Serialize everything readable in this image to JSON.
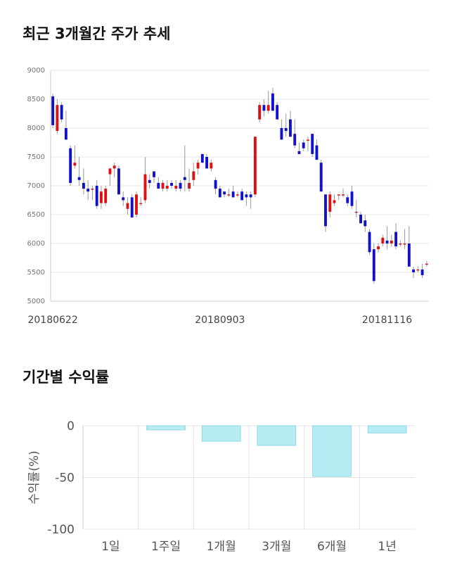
{
  "titles": {
    "candle": "최근 3개월간 주가 추세",
    "returns": "기간별 수익률"
  },
  "colors": {
    "up": "#dd1111",
    "down": "#1111cc",
    "bar_fill": "#b6ecf4",
    "bar_stroke": "#8fd6e6",
    "grid": "#e4e4e4"
  },
  "chart_data": [
    {
      "type": "candlestick",
      "title": "최근 3개월간 주가 추세",
      "ylim": [
        5000,
        9000
      ],
      "yticks": [
        "9000",
        "8500",
        "8000",
        "7500",
        "7000",
        "6500",
        "6000",
        "5500",
        "5000"
      ],
      "xtick_labels": [
        "20180622",
        "20180903",
        "20181116"
      ],
      "xtick_positions": [
        0,
        38,
        76
      ],
      "grid": true,
      "ohlc": [
        [
          8550,
          8600,
          8000,
          8050
        ],
        [
          7950,
          8500,
          7900,
          8400
        ],
        [
          8400,
          8450,
          8100,
          8150
        ],
        [
          8000,
          8300,
          7800,
          7800
        ],
        [
          7650,
          7700,
          7000,
          7050
        ],
        [
          7350,
          7700,
          7300,
          7400
        ],
        [
          7150,
          7500,
          7000,
          7100
        ],
        [
          7050,
          7300,
          6850,
          6950
        ],
        [
          6950,
          7100,
          6750,
          6900
        ],
        [
          6950,
          7000,
          6750,
          6950
        ],
        [
          7000,
          7100,
          6600,
          6650
        ],
        [
          6700,
          7000,
          6600,
          6900
        ],
        [
          6700,
          7000,
          6650,
          6950
        ],
        [
          7200,
          7300,
          7000,
          7300
        ],
        [
          7300,
          7400,
          7150,
          7350
        ],
        [
          7300,
          7350,
          6850,
          6850
        ],
        [
          6800,
          6900,
          6650,
          6750
        ],
        [
          6600,
          6800,
          6500,
          6700
        ],
        [
          6800,
          6850,
          6450,
          6450
        ],
        [
          6500,
          6900,
          6450,
          6850
        ],
        [
          6700,
          6800,
          6650,
          6700
        ],
        [
          6750,
          7500,
          6700,
          7200
        ],
        [
          7100,
          7200,
          6950,
          7050
        ],
        [
          7250,
          7250,
          7050,
          7150
        ],
        [
          7050,
          7150,
          6950,
          6950
        ],
        [
          6950,
          7100,
          6900,
          7050
        ],
        [
          6950,
          7100,
          6900,
          7000
        ],
        [
          7050,
          7100,
          6950,
          7000
        ],
        [
          6950,
          7100,
          6900,
          7000
        ],
        [
          7050,
          7100,
          6900,
          6950
        ],
        [
          7150,
          7700,
          6900,
          7100
        ],
        [
          6950,
          7300,
          6900,
          7050
        ],
        [
          7100,
          7400,
          7000,
          7250
        ],
        [
          7300,
          7450,
          7200,
          7400
        ],
        [
          7550,
          7550,
          7400,
          7400
        ],
        [
          7500,
          7550,
          7300,
          7300
        ],
        [
          7300,
          7450,
          7250,
          7400
        ],
        [
          7100,
          7150,
          6850,
          6950
        ],
        [
          6950,
          7000,
          6800,
          6800
        ],
        [
          6900,
          6900,
          6800,
          6850
        ],
        [
          6850,
          6950,
          6800,
          6850
        ],
        [
          6900,
          7000,
          6800,
          6800
        ],
        [
          6850,
          6900,
          6800,
          6850
        ],
        [
          6900,
          6950,
          6750,
          6750
        ],
        [
          6850,
          6900,
          6650,
          6800
        ],
        [
          6850,
          6900,
          6600,
          6800
        ],
        [
          6850,
          7850,
          6800,
          7850
        ],
        [
          8150,
          8450,
          8100,
          8400
        ],
        [
          8400,
          8500,
          8200,
          8300
        ],
        [
          8300,
          8650,
          8250,
          8400
        ],
        [
          8600,
          8700,
          8300,
          8300
        ],
        [
          8400,
          8450,
          8150,
          8150
        ],
        [
          8000,
          8150,
          7800,
          7800
        ],
        [
          8000,
          8250,
          7850,
          7950
        ],
        [
          8150,
          8300,
          7850,
          7850
        ],
        [
          7900,
          8150,
          7650,
          7700
        ],
        [
          7600,
          7750,
          7550,
          7550
        ],
        [
          7750,
          7800,
          7600,
          7650
        ],
        [
          7800,
          7850,
          7600,
          7800
        ],
        [
          7900,
          7900,
          7500,
          7550
        ],
        [
          7700,
          7800,
          7450,
          7450
        ],
        [
          7400,
          7450,
          6900,
          6900
        ],
        [
          6850,
          6850,
          6200,
          6300
        ],
        [
          6550,
          6900,
          6450,
          6850
        ],
        [
          6700,
          6850,
          6650,
          6750
        ],
        [
          6850,
          6850,
          6750,
          6850
        ],
        [
          6850,
          6950,
          6800,
          6850
        ],
        [
          6800,
          6850,
          6650,
          6700
        ],
        [
          6900,
          7000,
          6600,
          6650
        ],
        [
          6550,
          6750,
          6450,
          6550
        ],
        [
          6500,
          6550,
          6350,
          6350
        ],
        [
          6400,
          6500,
          6200,
          6300
        ],
        [
          6200,
          6250,
          5800,
          5850
        ],
        [
          5900,
          6000,
          5300,
          5350
        ],
        [
          5900,
          6000,
          5850,
          5950
        ],
        [
          6000,
          6150,
          5950,
          6100
        ],
        [
          6050,
          6300,
          5900,
          6000
        ],
        [
          6000,
          6150,
          5950,
          6050
        ],
        [
          6200,
          6350,
          5900,
          5950
        ],
        [
          6000,
          6050,
          5950,
          6000
        ],
        [
          6000,
          6250,
          5900,
          6000
        ],
        [
          6000,
          6300,
          5600,
          5600
        ],
        [
          5550,
          5600,
          5400,
          5500
        ],
        [
          5550,
          5600,
          5500,
          5550
        ],
        [
          5550,
          5650,
          5400,
          5450
        ],
        [
          5650,
          5700,
          5600,
          5650
        ]
      ]
    },
    {
      "type": "bar",
      "title": "기간별 수익률",
      "categories": [
        "1일",
        "1주일",
        "1개월",
        "3개월",
        "6개월",
        "1년"
      ],
      "values": [
        0,
        -4,
        -15,
        -19,
        -49,
        -7
      ],
      "ylabel": "수익률(%)",
      "ylim": [
        -100,
        0
      ],
      "yticks": [
        "0",
        "-50",
        "-100"
      ],
      "grid": true
    }
  ]
}
